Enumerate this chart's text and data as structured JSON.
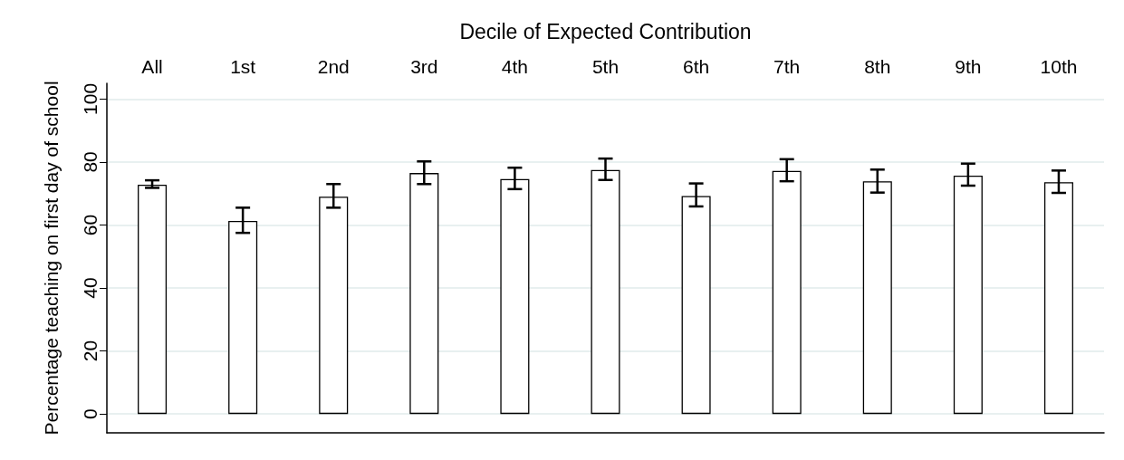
{
  "chart_data": {
    "type": "bar",
    "xlabel": "Decile of Expected Contribution",
    "ylabel": "Percentage teaching on first day of school",
    "categories": [
      "All",
      "1st",
      "2nd",
      "3rd",
      "4th",
      "5th",
      "6th",
      "7th",
      "8th",
      "9th",
      "10th"
    ],
    "values": [
      72.8,
      61.3,
      69.0,
      76.5,
      74.6,
      77.5,
      69.2,
      77.2,
      73.9,
      75.7,
      73.6
    ],
    "errors": [
      [
        71.8,
        74.2
      ],
      [
        57.5,
        65.5
      ],
      [
        65.5,
        73.0
      ],
      [
        73.0,
        80.2
      ],
      [
        71.4,
        78.2
      ],
      [
        74.3,
        81.1
      ],
      [
        65.9,
        73.2
      ],
      [
        73.9,
        80.9
      ],
      [
        70.3,
        77.6
      ],
      [
        72.5,
        79.5
      ],
      [
        70.2,
        77.3
      ]
    ],
    "color": "#ffffff",
    "ylim": [
      -6,
      105
    ],
    "yticks": [
      0,
      20,
      40,
      60,
      80,
      100
    ],
    "grid": "y"
  }
}
